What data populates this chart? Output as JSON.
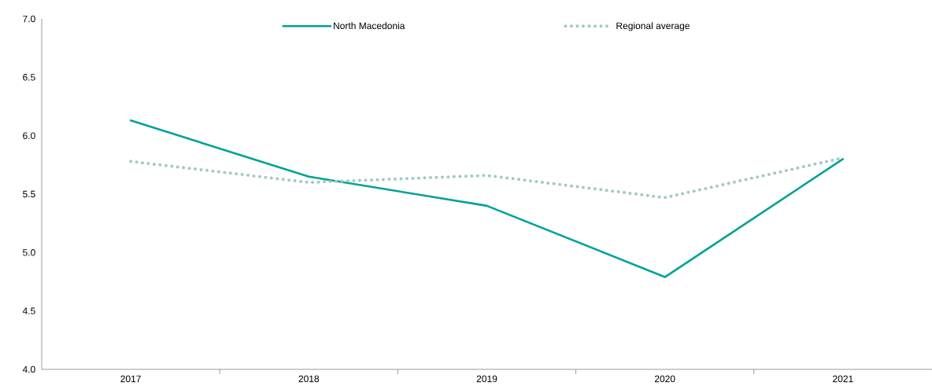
{
  "chart_data": {
    "type": "line",
    "categories": [
      "2017",
      "2018",
      "2019",
      "2020",
      "2021"
    ],
    "series": [
      {
        "name": "North Macedonia",
        "color": "#00a19a",
        "line_style": "solid",
        "values": [
          6.13,
          5.65,
          5.4,
          4.79,
          5.8
        ]
      },
      {
        "name": "Regional average",
        "color": "#9fc9c4",
        "line_style": "dotted",
        "values": [
          5.78,
          5.6,
          5.66,
          5.47,
          5.81
        ]
      }
    ],
    "ylim": [
      4.0,
      7.0
    ],
    "yticks": [
      {
        "value": 4.0,
        "label": "4.0"
      },
      {
        "value": 4.5,
        "label": "4.5"
      },
      {
        "value": 5.0,
        "label": "5.0"
      },
      {
        "value": 5.5,
        "label": "5.5"
      },
      {
        "value": 6.0,
        "label": "6.0"
      },
      {
        "value": 6.5,
        "label": "6.5"
      },
      {
        "value": 7.0,
        "label": "7.0"
      }
    ],
    "grid": false,
    "legend": "top",
    "marker": "none"
  }
}
